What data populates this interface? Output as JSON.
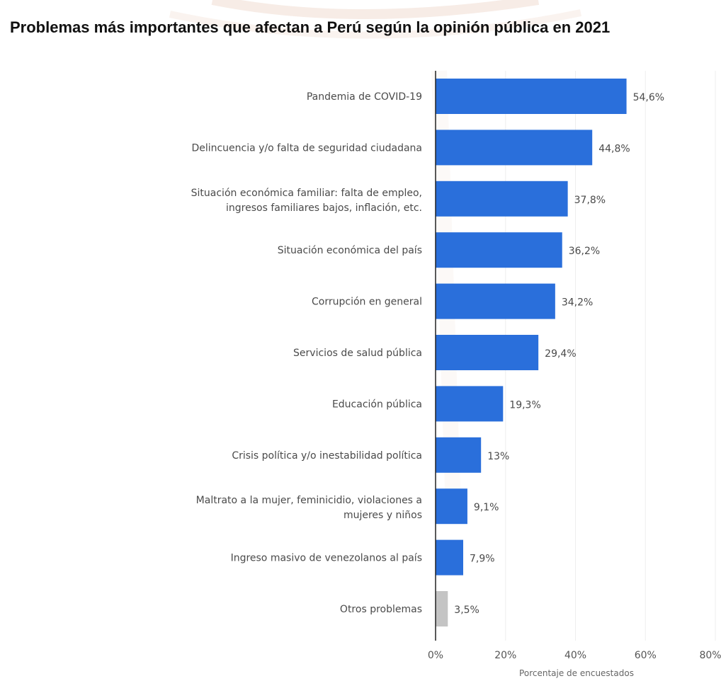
{
  "chart_data": {
    "type": "bar",
    "orientation": "horizontal",
    "title": "Problemas más importantes que afectan a Perú según la opinión pública en 2021",
    "xlabel": "Porcentaje de encuestados",
    "ylabel": "",
    "xlim": [
      0,
      80
    ],
    "ticks": [
      "0%",
      "20%",
      "40%",
      "60%",
      "80%"
    ],
    "grid": true,
    "categories": [
      "Pandemia de COVID-19",
      "Delincuencia y/o falta de seguridad ciudadana",
      "Situación económica familiar: falta de empleo, ingresos familiares bajos, inflación, etc.",
      "Situación económica del país",
      "Corrupción en general",
      "Servicios de salud pública",
      "Educación pública",
      "Crisis política y/o inestabilidad política",
      "Maltrato a la mujer, feminicidio, violaciones a mujeres y niños",
      "Ingreso masivo de venezolanos al país",
      "Otros problemas"
    ],
    "category_lines": [
      [
        "Pandemia de COVID-19"
      ],
      [
        "Delincuencia y/o falta de seguridad ciudadana"
      ],
      [
        "Situación económica familiar: falta de empleo,",
        "ingresos familiares bajos, inflación, etc."
      ],
      [
        "Situación económica del país"
      ],
      [
        "Corrupción en general"
      ],
      [
        "Servicios de salud pública"
      ],
      [
        "Educación pública"
      ],
      [
        "Crisis política y/o inestabilidad política"
      ],
      [
        "Maltrato a la mujer, feminicidio, violaciones a",
        "mujeres y niños"
      ],
      [
        "Ingreso masivo de venezolanos al país"
      ],
      [
        "Otros problemas"
      ]
    ],
    "values": [
      54.6,
      44.8,
      37.8,
      36.2,
      34.2,
      29.4,
      19.3,
      13,
      9.1,
      7.9,
      3.5
    ],
    "value_labels": [
      "54,6%",
      "44,8%",
      "37,8%",
      "36,2%",
      "34,2%",
      "29,4%",
      "19,3%",
      "13%",
      "9,1%",
      "7,9%",
      "3,5%"
    ],
    "colors": {
      "bar": "#2a6fdb",
      "highlight_bar": "#c4c4c4",
      "axis": "#222222",
      "grid": "#eeeeee"
    },
    "highlight_index": 10
  }
}
